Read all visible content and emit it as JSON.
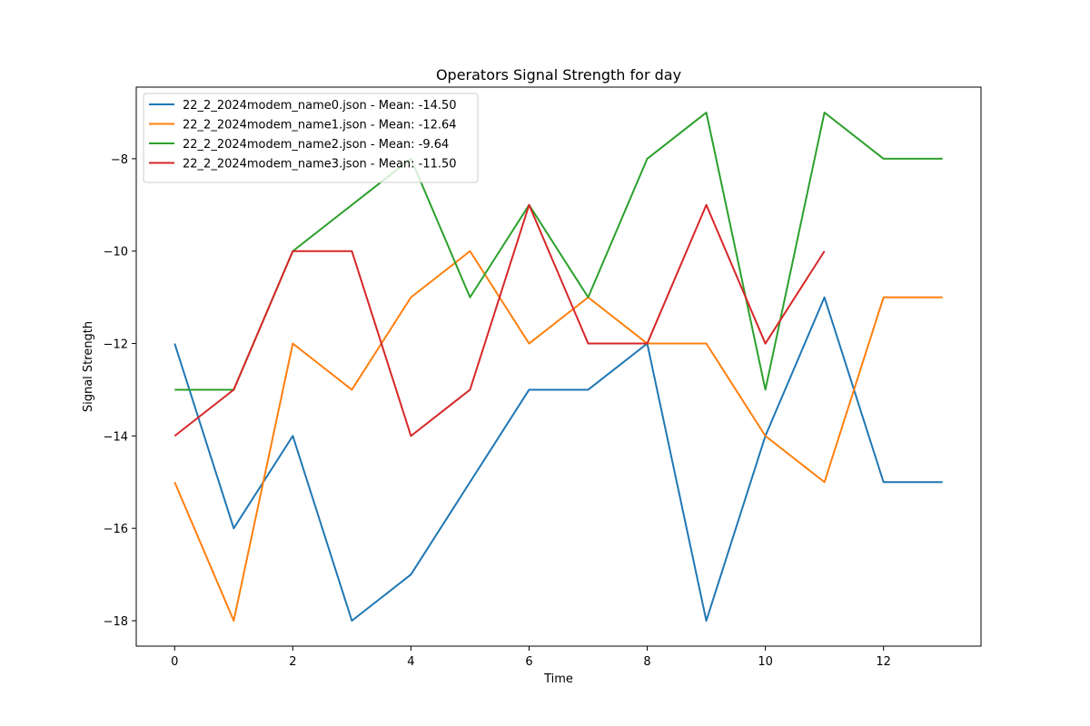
{
  "chart_data": {
    "type": "line",
    "title": "Operators Signal Strength for day",
    "xlabel": "Time",
    "ylabel": "Signal Strength",
    "xlim": [
      -0.65,
      13.65
    ],
    "ylim": [
      -18.55,
      -6.45
    ],
    "xticks": [
      0,
      2,
      4,
      6,
      8,
      10,
      12
    ],
    "yticks": [
      -18,
      -16,
      -14,
      -12,
      -10,
      -8
    ],
    "grid": false,
    "legend_position": "top-left",
    "series": [
      {
        "name": "22_2_2024modem_name0.json - Mean: -14.50",
        "color": "#1f77b4",
        "x": [
          0,
          1,
          2,
          3,
          4,
          5,
          6,
          7,
          8,
          9,
          10,
          11,
          12,
          13
        ],
        "y": [
          -12,
          -16,
          -14,
          -18,
          -17,
          -15,
          -13,
          -13,
          -12,
          -18,
          -14,
          -11,
          -15,
          -15
        ]
      },
      {
        "name": "22_2_2024modem_name1.json - Mean: -12.64",
        "color": "#ff7f0e",
        "x": [
          0,
          1,
          2,
          3,
          4,
          5,
          6,
          7,
          8,
          9,
          10,
          11,
          12,
          13
        ],
        "y": [
          -15,
          -18,
          -12,
          -13,
          -11,
          -10,
          -12,
          -11,
          -12,
          -12,
          -14,
          -15,
          -11,
          -11
        ]
      },
      {
        "name": "22_2_2024modem_name2.json - Mean: -9.64",
        "color": "#2ca02c",
        "x": [
          0,
          1,
          2,
          3,
          4,
          5,
          6,
          7,
          8,
          9,
          10,
          11,
          12,
          13
        ],
        "y": [
          -13,
          -13,
          -10,
          -9,
          -8,
          -11,
          -9,
          -11,
          -8,
          -7,
          -13,
          -7,
          -8,
          -8
        ]
      },
      {
        "name": "22_2_2024modem_name3.json - Mean: -11.50",
        "color": "#d62728",
        "x": [
          0,
          1,
          2,
          3,
          4,
          5,
          6,
          7,
          8,
          9,
          10,
          11
        ],
        "y": [
          -14,
          -13,
          -10,
          -10,
          -14,
          -13,
          -9,
          -12,
          -12,
          -9,
          -12,
          -10
        ]
      }
    ]
  }
}
